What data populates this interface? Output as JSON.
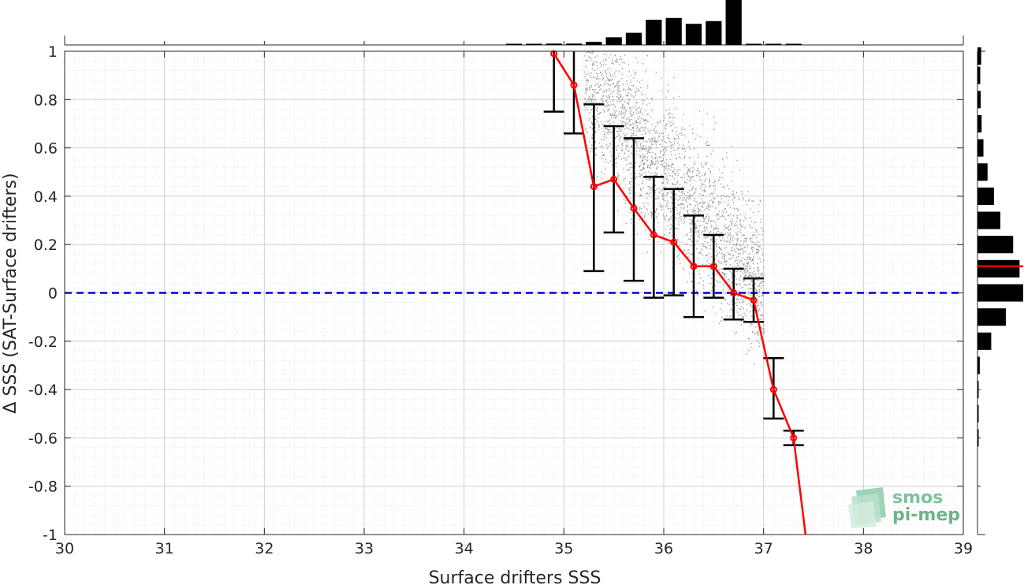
{
  "chart_data": {
    "type": "scatter",
    "xlabel": "Surface drifters SSS",
    "ylabel": "Δ SSS (SAT-Surface drifters)",
    "xlim": [
      30,
      39
    ],
    "ylim": [
      -1,
      1
    ],
    "x_ticks": [
      "30",
      "31",
      "32",
      "33",
      "34",
      "35",
      "36",
      "37",
      "38",
      "39"
    ],
    "y_ticks": [
      "1",
      "0.8",
      "0.6",
      "0.4",
      "0.2",
      "0",
      "-0.2",
      "-0.4",
      "-0.6",
      "-0.8",
      "-1"
    ],
    "grid": true,
    "zero_line": {
      "y": 0,
      "color": "#0000e0",
      "style": "dashed"
    },
    "mean_series": {
      "color": "#ff0000",
      "x": [
        34.9,
        35.1,
        35.3,
        35.5,
        35.7,
        35.9,
        36.1,
        36.3,
        36.5,
        36.7,
        36.9,
        37.1,
        37.3
      ],
      "y": [
        0.99,
        0.86,
        0.44,
        0.47,
        0.35,
        0.24,
        0.21,
        0.11,
        0.11,
        0.0,
        -0.03,
        -0.4,
        -0.6
      ],
      "extension": {
        "x": [
          37.3,
          37.42
        ],
        "y": [
          -0.6,
          -1.0
        ]
      }
    },
    "error_bars": {
      "color": "#000000",
      "x": [
        34.9,
        35.1,
        35.3,
        35.5,
        35.7,
        35.9,
        36.1,
        36.3,
        36.5,
        36.7,
        36.9,
        37.1,
        37.3
      ],
      "lower": [
        0.75,
        0.66,
        0.09,
        0.25,
        0.05,
        -0.02,
        -0.01,
        -0.1,
        -0.02,
        -0.11,
        -0.12,
        -0.52,
        -0.63
      ],
      "upper": [
        1.0,
        1.0,
        0.78,
        0.69,
        0.64,
        0.48,
        0.43,
        0.32,
        0.24,
        0.1,
        0.06,
        -0.27,
        -0.57
      ]
    },
    "scatter": {
      "color": "#8c8c8c"
    },
    "top_histogram": {
      "color": "#000000",
      "bin_centers": [
        34.5,
        34.7,
        34.9,
        35.1,
        35.3,
        35.5,
        35.7,
        35.9,
        36.1,
        36.3,
        36.5,
        36.7,
        36.9,
        37.1,
        37.3
      ],
      "relative_counts": [
        0.01,
        0.02,
        0.03,
        0.03,
        0.07,
        0.17,
        0.27,
        0.56,
        0.6,
        0.47,
        0.53,
        1.0,
        0.02,
        0.02,
        0.01
      ]
    },
    "right_histogram": {
      "color": "#000000",
      "marker_color": "#ff0000",
      "marker_y": 0.11,
      "bin_centers": [
        0.98,
        0.9,
        0.8,
        0.7,
        0.6,
        0.5,
        0.4,
        0.3,
        0.2,
        0.1,
        0.0,
        -0.1,
        -0.2,
        -0.3,
        -0.4,
        -0.5,
        -0.6
      ],
      "relative_counts": [
        0.08,
        0.06,
        0.07,
        0.09,
        0.13,
        0.22,
        0.36,
        0.5,
        0.78,
        0.92,
        1.0,
        0.62,
        0.3,
        0.05,
        0.02,
        0.02,
        0.02
      ]
    }
  },
  "logo": {
    "line1": "smos",
    "line2": "pi-mep"
  }
}
